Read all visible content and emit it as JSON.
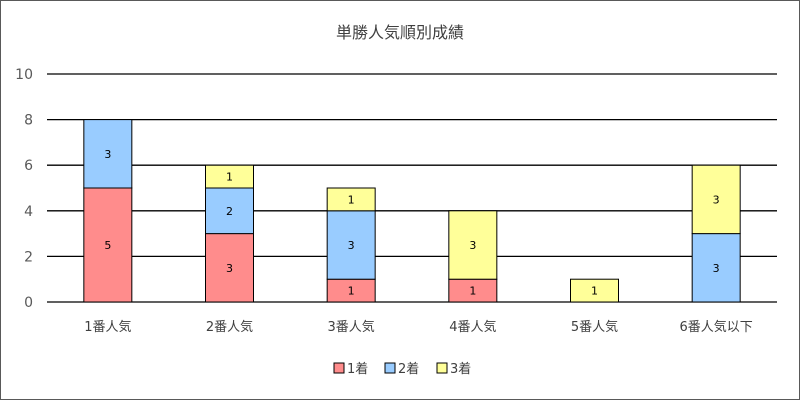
{
  "chart_data": {
    "type": "bar",
    "stacked": true,
    "title": "単勝人気順別成績",
    "categories": [
      "1番人気",
      "2番人気",
      "3番人気",
      "4番人気",
      "5番人気",
      "6番人気以下"
    ],
    "series": [
      {
        "name": "1着",
        "values": [
          5,
          3,
          1,
          1,
          0,
          0
        ],
        "color": "#FF8C8C"
      },
      {
        "name": "2着",
        "values": [
          3,
          2,
          3,
          0,
          0,
          3
        ],
        "color": "#99CCFF"
      },
      {
        "name": "3着",
        "values": [
          0,
          1,
          1,
          3,
          1,
          3
        ],
        "color": "#FFFF99"
      }
    ],
    "ylim": [
      0,
      10
    ],
    "yticks": [
      0,
      2,
      4,
      6,
      8,
      10
    ],
    "grid": true,
    "legend_position": "bottom"
  }
}
